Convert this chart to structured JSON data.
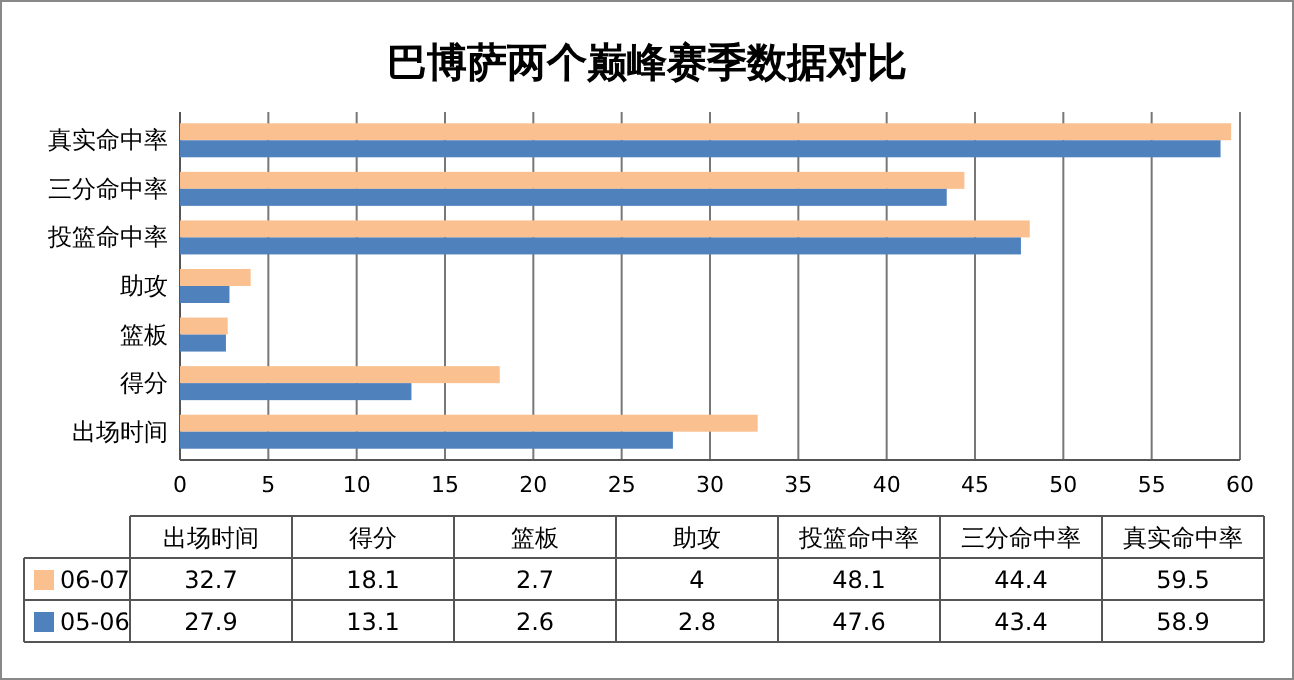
{
  "chart_data": [
    {
      "type": "bar",
      "orientation": "horizontal",
      "title": "巴博萨两个巅峰赛季数据对比",
      "categories": [
        "真实命中率",
        "三分命中率",
        "投篮命中率",
        "助攻",
        "篮板",
        "得分",
        "出场时间"
      ],
      "series": [
        {
          "name": "06-07",
          "color": "#fac090",
          "values": [
            59.5,
            44.4,
            48.1,
            4,
            2.7,
            18.1,
            32.7
          ]
        },
        {
          "name": "05-06",
          "color": "#4f81bd",
          "values": [
            58.9,
            43.4,
            47.6,
            2.8,
            2.6,
            13.1,
            27.9
          ]
        }
      ],
      "xlim": [
        0,
        60
      ],
      "xticks": [
        0,
        5,
        10,
        15,
        20,
        25,
        30,
        35,
        40,
        45,
        50,
        55,
        60
      ],
      "grid": "x",
      "legend": "bottom"
    },
    {
      "type": "other",
      "categories": [
        "出场时间",
        "得分",
        "篮板",
        "助攻",
        "投篮命中率",
        "三分命中率",
        "真实命中率"
      ],
      "series": [
        {
          "values": [
            32.7,
            18.1,
            2.7,
            4,
            48.1,
            44.4,
            59.5
          ]
        },
        {
          "values": [
            27.9,
            13.1,
            2.6,
            2.8,
            47.6,
            43.4,
            58.9
          ]
        }
      ],
      "data_labels": true
    }
  ]
}
